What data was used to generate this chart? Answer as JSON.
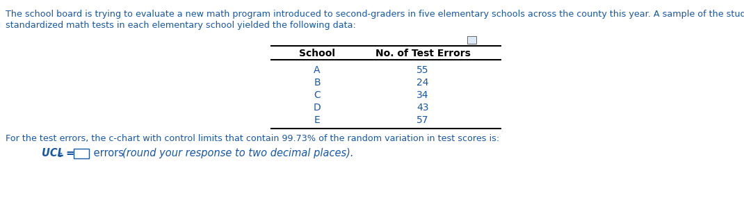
{
  "intro_text_line1": "The school board is trying to evaluate a new math program introduced to second-graders in five elementary schools across the county this year. A sample of the student scores on",
  "intro_text_line2": "standardized math tests in each elementary school yielded the following data:",
  "schools": [
    "A",
    "B",
    "C",
    "D",
    "E"
  ],
  "errors": [
    55,
    24,
    34,
    43,
    57
  ],
  "col1_header": "School",
  "col2_header": "No. of Test Errors",
  "bottom_text": "For the test errors, the c-chart with control limits that contain 99.73% of the random variation in test scores is:",
  "ucl_italic": "(round your response to two decimal places).",
  "text_color": "#1757a8",
  "table_header_color": "#000000",
  "table_data_color": "#1757a8",
  "bg_color": "#ffffff",
  "font_size_intro": 9.2,
  "font_size_table_header": 10.0,
  "font_size_table_data": 10.0,
  "font_size_bottom": 9.2,
  "font_size_ucl": 10.5
}
